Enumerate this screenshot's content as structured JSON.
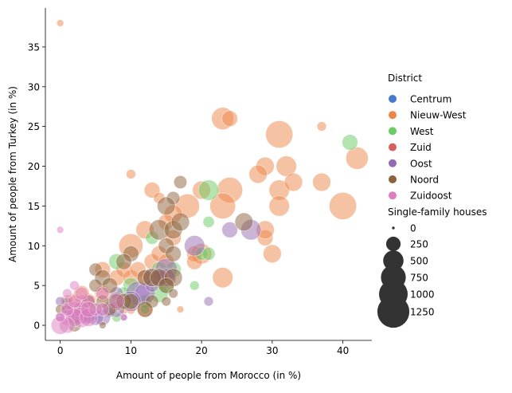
{
  "chart_data": {
    "type": "scatter",
    "title": "",
    "xlabel": "Amount of people from Morocco (in %)",
    "ylabel": "Amount of people from Turkey (in %)",
    "xlim": [
      -2.1,
      44.1
    ],
    "ylim": [
      -1.9,
      39.9
    ],
    "x_ticks": [
      0,
      10,
      20,
      30,
      40
    ],
    "y_ticks": [
      0,
      5,
      10,
      15,
      20,
      25,
      30,
      35
    ],
    "grid": false,
    "legend": {
      "placement": "right",
      "hue_title": "District",
      "size_title": "Single-family houses",
      "size_levels": [
        0,
        250,
        500,
        750,
        1000,
        1250
      ]
    },
    "size_range": [
      0,
      1400
    ],
    "point_opacity": 0.5,
    "series": [
      {
        "name": "Centrum",
        "color": "#4878d0",
        "points": []
      },
      {
        "name": "Nieuw-West",
        "color": "#ee854a",
        "points": [
          [
            0,
            38,
            50
          ],
          [
            23,
            26,
            600
          ],
          [
            24,
            26,
            300
          ],
          [
            37,
            25,
            100
          ],
          [
            31,
            24,
            900
          ],
          [
            42,
            21,
            600
          ],
          [
            29,
            20,
            400
          ],
          [
            32,
            20,
            500
          ],
          [
            28,
            19,
            400
          ],
          [
            10,
            19,
            100
          ],
          [
            24,
            17,
            800
          ],
          [
            31,
            17,
            500
          ],
          [
            20,
            17,
            400
          ],
          [
            13,
            17,
            300
          ],
          [
            33,
            18,
            400
          ],
          [
            37,
            18,
            400
          ],
          [
            14,
            16,
            150
          ],
          [
            18,
            15,
            700
          ],
          [
            23,
            15,
            800
          ],
          [
            31,
            15,
            500
          ],
          [
            40,
            15,
            900
          ],
          [
            16,
            14,
            400
          ],
          [
            15,
            13,
            300
          ],
          [
            10,
            10,
            700
          ],
          [
            20,
            9,
            500
          ],
          [
            30,
            9,
            400
          ],
          [
            29,
            11,
            300
          ],
          [
            29,
            12,
            400
          ],
          [
            19,
            9,
            300
          ],
          [
            19,
            8,
            300
          ],
          [
            13,
            8,
            300
          ],
          [
            14,
            9,
            300
          ],
          [
            15,
            8,
            300
          ],
          [
            16,
            11,
            300
          ],
          [
            12,
            12,
            400
          ],
          [
            8,
            6,
            300
          ],
          [
            9,
            7,
            300
          ],
          [
            10,
            6,
            300
          ],
          [
            11,
            7,
            300
          ],
          [
            12,
            6,
            300
          ],
          [
            6,
            7,
            300
          ],
          [
            23,
            6,
            500
          ],
          [
            14,
            6,
            400
          ],
          [
            15,
            6,
            500
          ],
          [
            17,
            2,
            50
          ],
          [
            6,
            4,
            300
          ],
          [
            4,
            3,
            300
          ],
          [
            3,
            4,
            300
          ],
          [
            2,
            3,
            300
          ],
          [
            3,
            2,
            300
          ],
          [
            1,
            3,
            200
          ],
          [
            9,
            2,
            100
          ],
          [
            10,
            2,
            100
          ],
          [
            12,
            2,
            300
          ],
          [
            5,
            2,
            200
          ]
        ]
      },
      {
        "name": "West",
        "color": "#6acc64",
        "points": [
          [
            41,
            23,
            300
          ],
          [
            21,
            17,
            500
          ],
          [
            21,
            13,
            150
          ],
          [
            13,
            11,
            200
          ],
          [
            20,
            9,
            200
          ],
          [
            21,
            9,
            200
          ],
          [
            16,
            7,
            300
          ],
          [
            14,
            7,
            300
          ],
          [
            15,
            5,
            300
          ],
          [
            19,
            5,
            100
          ],
          [
            8,
            8,
            300
          ],
          [
            10,
            5,
            300
          ],
          [
            9,
            4,
            200
          ],
          [
            8,
            3,
            300
          ],
          [
            9,
            3,
            300
          ],
          [
            10,
            3,
            300
          ],
          [
            12,
            3,
            200
          ],
          [
            8,
            1,
            100
          ],
          [
            4,
            1,
            100
          ],
          [
            2,
            1,
            200
          ],
          [
            5,
            2,
            200
          ],
          [
            3,
            2,
            200
          ],
          [
            12,
            2,
            100
          ],
          [
            14,
            4,
            400
          ]
        ]
      },
      {
        "name": "Zuid",
        "color": "#d65f5f",
        "points": []
      },
      {
        "name": "Oost",
        "color": "#956cb4",
        "points": [
          [
            19,
            10,
            500
          ],
          [
            24,
            12,
            300
          ],
          [
            27,
            12,
            500
          ],
          [
            21,
            3,
            100
          ],
          [
            11,
            4,
            700
          ],
          [
            12,
            4,
            500
          ],
          [
            10,
            3,
            500
          ],
          [
            8,
            2,
            300
          ],
          [
            7,
            2,
            300
          ],
          [
            6,
            1,
            300
          ],
          [
            5,
            1,
            300
          ],
          [
            4,
            1,
            200
          ],
          [
            3,
            1,
            200
          ],
          [
            2,
            1,
            200
          ],
          [
            1,
            2,
            100
          ],
          [
            1,
            3,
            100
          ],
          [
            0,
            1,
            100
          ],
          [
            0,
            3,
            100
          ],
          [
            15,
            7,
            600
          ],
          [
            15,
            6,
            400
          ],
          [
            13,
            6,
            400
          ],
          [
            14,
            6,
            300
          ],
          [
            13,
            5,
            200
          ],
          [
            9,
            1,
            50
          ],
          [
            8,
            4,
            200
          ]
        ]
      },
      {
        "name": "Noord",
        "color": "#8c613c",
        "points": [
          [
            17,
            18,
            200
          ],
          [
            16,
            16,
            200
          ],
          [
            15,
            15,
            400
          ],
          [
            14,
            12,
            500
          ],
          [
            16,
            12,
            400
          ],
          [
            17,
            13,
            400
          ],
          [
            26,
            13,
            400
          ],
          [
            15,
            10,
            300
          ],
          [
            10,
            9,
            300
          ],
          [
            9,
            8,
            300
          ],
          [
            16,
            9,
            300
          ],
          [
            12,
            6,
            300
          ],
          [
            13,
            6,
            400
          ],
          [
            14,
            6,
            400
          ],
          [
            16,
            6,
            400
          ],
          [
            15,
            5,
            300
          ],
          [
            5,
            7,
            200
          ],
          [
            6,
            6,
            300
          ],
          [
            7,
            5,
            300
          ],
          [
            5,
            5,
            200
          ],
          [
            8,
            3,
            400
          ],
          [
            9,
            3,
            300
          ],
          [
            10,
            3,
            300
          ],
          [
            13,
            3,
            200
          ],
          [
            12,
            2,
            300
          ],
          [
            6,
            0,
            50
          ],
          [
            2,
            0,
            200
          ],
          [
            1,
            2,
            100
          ],
          [
            0,
            2,
            100
          ],
          [
            15,
            3,
            100
          ],
          [
            16,
            4,
            100
          ],
          [
            7,
            2,
            200
          ],
          [
            4,
            3,
            200
          ],
          [
            3,
            2,
            200
          ],
          [
            6,
            3,
            200
          ]
        ]
      },
      {
        "name": "Zuidoost",
        "color": "#dc7ec0",
        "points": [
          [
            0,
            12,
            50
          ],
          [
            2,
            5,
            100
          ],
          [
            1,
            4,
            100
          ],
          [
            3,
            3,
            200
          ],
          [
            4,
            3,
            200
          ],
          [
            3,
            2,
            300
          ],
          [
            2,
            2,
            300
          ],
          [
            1,
            1,
            300
          ],
          [
            3,
            1,
            500
          ],
          [
            2,
            1,
            400
          ],
          [
            1,
            0,
            300
          ],
          [
            0,
            0,
            400
          ],
          [
            4,
            1,
            400
          ],
          [
            5,
            2,
            200
          ],
          [
            6,
            2,
            200
          ],
          [
            8,
            3,
            300
          ],
          [
            9,
            1,
            50
          ],
          [
            1,
            2,
            200
          ],
          [
            2,
            3,
            200
          ],
          [
            3,
            4,
            200
          ],
          [
            0,
            1,
            100
          ],
          [
            6,
            4,
            200
          ],
          [
            4,
            2,
            300
          ]
        ]
      }
    ]
  }
}
